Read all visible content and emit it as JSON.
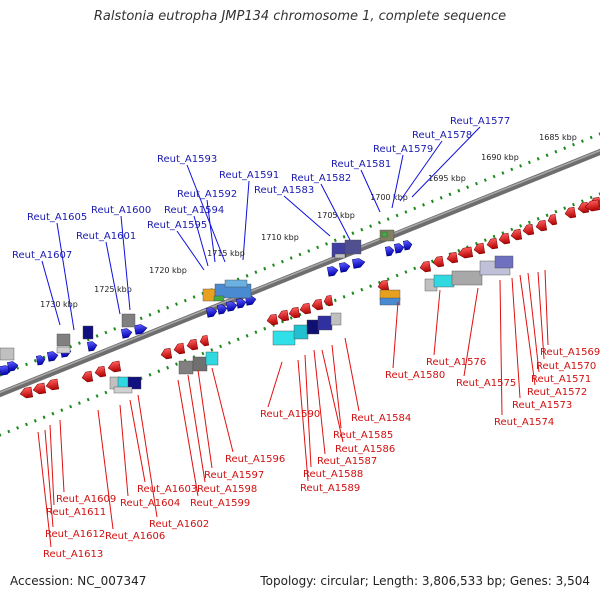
{
  "title": "Ralstonia eutropha JMP134 chromosome 1, complete sequence",
  "footer": {
    "accession": "Accession: NC_007347",
    "summary": "Topology: circular; Length: 3,806,533 bp; Genes: 3,504"
  },
  "colors": {
    "forward": "#1010dd",
    "reverse": "#e01010",
    "forward_label": "#1a1ab0",
    "reverse_label": "#d01010",
    "tick": "#1e8a1e",
    "backbone": "#6e6e6e",
    "scale_text": "#222222"
  },
  "scale_labels": [
    "1685 kbp",
    "1690 kbp",
    "1695 kbp",
    "1700 kbp",
    "1705 kbp",
    "1710 kbp",
    "1715 kbp",
    "1720 kbp",
    "1725 kbp",
    "1730 kbp"
  ],
  "forward_labels": [
    "Reut_A1577",
    "Reut_A1578",
    "Reut_A1579",
    "Reut_A1581",
    "Reut_A1582",
    "Reut_A1583",
    "Reut_A1591",
    "Reut_A1593",
    "Reut_A1592",
    "Reut_A1594",
    "Reut_A1595",
    "Reut_A1600",
    "Reut_A1601",
    "Reut_A1605",
    "Reut_A1607"
  ],
  "reverse_labels": [
    "Reut_A1569",
    "Reut_A1570",
    "Reut_A1571",
    "Reut_A1572",
    "Reut_A1573",
    "Reut_A1574",
    "Reut_A1575",
    "Reut_A1576",
    "Reut_A1580",
    "Reut_A1584",
    "Reut_A1585",
    "Reut_A1586",
    "Reut_A1587",
    "Reut_A1588",
    "Reut_A1589",
    "Reut_A1590",
    "Reut_A1596",
    "Reut_A1597",
    "Reut_A1598",
    "Reut_A1599",
    "Reut_A1602",
    "Reut_A1603",
    "Reut_A1604",
    "Reut_A1606",
    "Reut_A1609",
    "Reut_A1611",
    "Reut_A1612",
    "Reut_A1613"
  ]
}
